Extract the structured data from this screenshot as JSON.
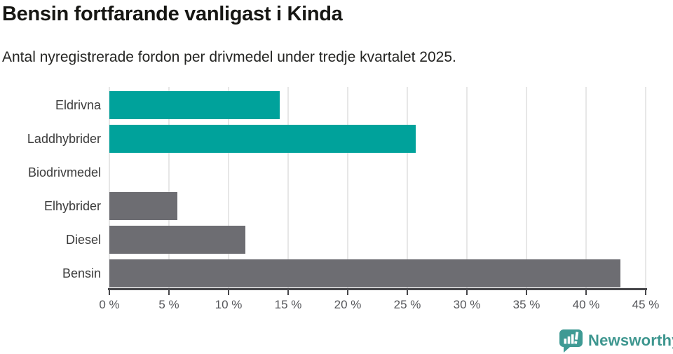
{
  "chart_data": {
    "type": "bar",
    "orientation": "horizontal",
    "title": "Bensin fortfarande vanligast i Kinda",
    "subtitle": "Antal nyregistrerade fordon per drivmedel under tredje kvartalet 2025.",
    "categories": [
      "Eldrivna",
      "Laddhybrider",
      "Biodrivmedel",
      "Elhybrider",
      "Diesel",
      "Bensin"
    ],
    "values": [
      14.3,
      25.7,
      0,
      5.7,
      11.4,
      42.9
    ],
    "unit": "%",
    "bar_colors": [
      "#00A29B",
      "#00A29B",
      "#00A29B",
      "#6D6D72",
      "#6D6D72",
      "#6D6D72"
    ],
    "xlim": [
      0,
      45
    ],
    "xticks": [
      {
        "value": 0,
        "label": "0 %"
      },
      {
        "value": 5,
        "label": "5 %"
      },
      {
        "value": 10,
        "label": "10 %"
      },
      {
        "value": 15,
        "label": "15 %"
      },
      {
        "value": 20,
        "label": "20 %"
      },
      {
        "value": 25,
        "label": "25 %"
      },
      {
        "value": 30,
        "label": "30 %"
      },
      {
        "value": 35,
        "label": "35 %"
      },
      {
        "value": 40,
        "label": "40 %"
      },
      {
        "value": 45,
        "label": "45 %"
      }
    ],
    "grid": "vertical",
    "legend": "none",
    "colors": {
      "accent_teal": "#00A29B",
      "neutral_gray": "#6D6D72",
      "gridline": "#E7E7E7",
      "axis": "#47474B",
      "tick_label": "#55565A",
      "category_label": "#3B3B3B",
      "title_text": "#161613"
    }
  },
  "footer": {
    "brand": "Newsworthy",
    "brand_color": "#3E968F",
    "logo_icon": "newsworthy-speech-bubble-barchart-icon"
  }
}
